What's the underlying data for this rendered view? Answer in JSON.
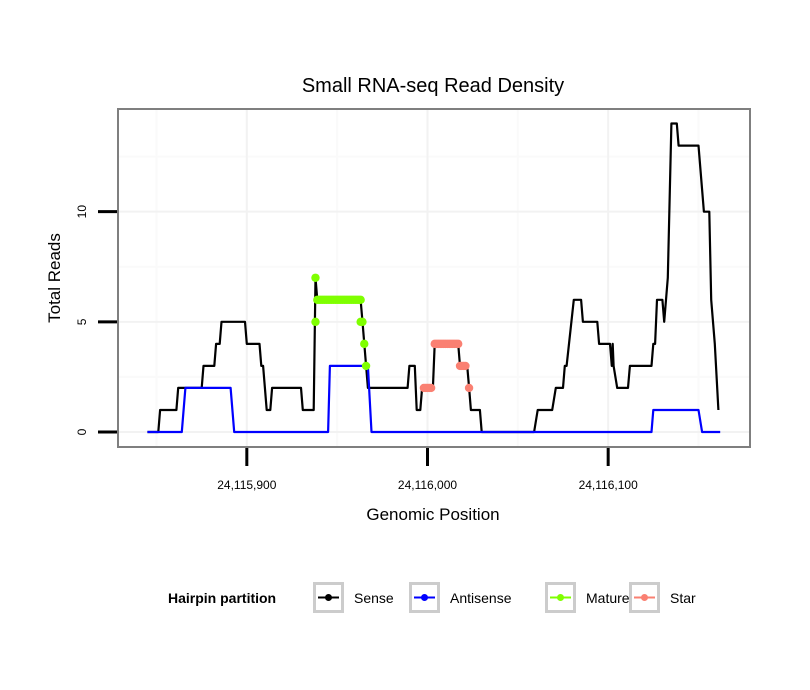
{
  "chart_data": {
    "type": "line",
    "title": "Small RNA-seq Read Density",
    "xlabel": "Genomic Position",
    "ylabel": "Total Reads",
    "xlim": [
      24115828.7,
      24116178.5
    ],
    "ylim": [
      -0.68,
      14.66
    ],
    "x_ticks": [
      24115900,
      24116000,
      24116100
    ],
    "x_tick_labels": [
      "24,115,900",
      "24,116,000",
      "24,116,100"
    ],
    "y_ticks": [
      0,
      5,
      10
    ],
    "y_tick_labels": [
      "0",
      "5",
      "10"
    ],
    "x_minor_grid": [
      24115850,
      24115950,
      24116050,
      24116150
    ],
    "y_minor_grid": [
      2.5,
      7.5,
      12.5
    ],
    "grid": true,
    "legend": {
      "title": "Hairpin partition",
      "position": "bottom",
      "entries": [
        {
          "name": "Sense",
          "color": "#000000"
        },
        {
          "name": "Antisense",
          "color": "#0000ff"
        },
        {
          "name": "Mature",
          "color": "#7fff00"
        },
        {
          "name": "Star",
          "color": "#fa8072"
        }
      ]
    },
    "series": [
      {
        "name": "Sense",
        "color": "#000000",
        "style": "line",
        "points": [
          [
            24115845,
            0
          ],
          [
            24115851,
            0
          ],
          [
            24115852,
            1
          ],
          [
            24115861,
            1
          ],
          [
            24115862,
            2
          ],
          [
            24115875,
            2
          ],
          [
            24115876,
            3
          ],
          [
            24115882,
            3
          ],
          [
            24115883,
            4
          ],
          [
            24115885,
            4
          ],
          [
            24115886,
            5
          ],
          [
            24115899,
            5
          ],
          [
            24115900,
            4
          ],
          [
            24115907,
            4
          ],
          [
            24115908,
            3
          ],
          [
            24115909,
            3
          ],
          [
            24115910,
            2
          ],
          [
            24115911,
            1
          ],
          [
            24115913,
            1
          ],
          [
            24115914,
            2
          ],
          [
            24115930,
            2
          ],
          [
            24115931,
            1
          ],
          [
            24115937,
            1
          ],
          [
            24115938,
            7
          ],
          [
            24115939,
            6
          ],
          [
            24115963,
            6
          ],
          [
            24115964,
            5
          ],
          [
            24115965,
            4
          ],
          [
            24115966,
            3
          ],
          [
            24115967,
            2
          ],
          [
            24115989,
            2
          ],
          [
            24115990,
            3
          ],
          [
            24115993,
            3
          ],
          [
            24115994,
            1
          ],
          [
            24115996,
            1
          ],
          [
            24115997,
            2
          ],
          [
            24116003,
            2
          ],
          [
            24116004,
            4
          ],
          [
            24116017,
            4
          ],
          [
            24116018,
            3
          ],
          [
            24116022,
            3
          ],
          [
            24116023,
            2
          ],
          [
            24116024,
            1
          ],
          [
            24116029,
            1
          ],
          [
            24116030,
            0
          ],
          [
            24116059,
            0
          ],
          [
            24116061,
            1
          ],
          [
            24116069,
            1
          ],
          [
            24116071,
            2
          ],
          [
            24116075,
            2
          ],
          [
            24116076,
            3
          ],
          [
            24116077,
            3
          ],
          [
            24116081,
            6
          ],
          [
            24116085,
            6
          ],
          [
            24116086,
            5
          ],
          [
            24116094,
            5
          ],
          [
            24116095,
            4
          ],
          [
            24116101,
            4
          ],
          [
            24116102,
            3
          ],
          [
            24116102.5,
            4
          ],
          [
            24116103,
            3
          ],
          [
            24116105,
            2
          ],
          [
            24116111,
            2
          ],
          [
            24116112,
            3
          ],
          [
            24116124,
            3
          ],
          [
            24116125,
            4
          ],
          [
            24116126,
            4
          ],
          [
            24116127,
            6
          ],
          [
            24116130,
            6
          ],
          [
            24116131,
            5
          ],
          [
            24116133,
            7
          ],
          [
            24116135,
            14
          ],
          [
            24116138,
            14
          ],
          [
            24116139,
            13
          ],
          [
            24116150,
            13
          ],
          [
            24116152,
            11
          ],
          [
            24116153,
            10
          ],
          [
            24116156,
            10
          ],
          [
            24116157,
            6
          ],
          [
            24116158,
            5
          ],
          [
            24116159,
            4
          ],
          [
            24116161,
            1
          ]
        ]
      },
      {
        "name": "Antisense",
        "color": "#0000ff",
        "style": "line",
        "points": [
          [
            24115845,
            0
          ],
          [
            24115864,
            0
          ],
          [
            24115866,
            2
          ],
          [
            24115891,
            2
          ],
          [
            24115893,
            0
          ],
          [
            24115945,
            0
          ],
          [
            24115946,
            3
          ],
          [
            24115967,
            3
          ],
          [
            24115969,
            0
          ],
          [
            24116124,
            0
          ],
          [
            24116125,
            1
          ],
          [
            24116150,
            1
          ],
          [
            24116152,
            0
          ],
          [
            24116162,
            0
          ]
        ]
      },
      {
        "name": "Mature",
        "color": "#7fff00",
        "style": "points",
        "points": [
          [
            24115938,
            7
          ],
          [
            24115938,
            5
          ],
          [
            24115939,
            6
          ],
          [
            24115940,
            6
          ],
          [
            24115941,
            6
          ],
          [
            24115942,
            6
          ],
          [
            24115943,
            6
          ],
          [
            24115944,
            6
          ],
          [
            24115945,
            6
          ],
          [
            24115946,
            6
          ],
          [
            24115947,
            6
          ],
          [
            24115948,
            6
          ],
          [
            24115949,
            6
          ],
          [
            24115950,
            6
          ],
          [
            24115951,
            6
          ],
          [
            24115952,
            6
          ],
          [
            24115953,
            6
          ],
          [
            24115954,
            6
          ],
          [
            24115955,
            6
          ],
          [
            24115956,
            6
          ],
          [
            24115957,
            6
          ],
          [
            24115958,
            6
          ],
          [
            24115959,
            6
          ],
          [
            24115960,
            6
          ],
          [
            24115961,
            6
          ],
          [
            24115962,
            6
          ],
          [
            24115963,
            6
          ],
          [
            24115963,
            5
          ],
          [
            24115964,
            5
          ],
          [
            24115965,
            4
          ],
          [
            24115966,
            3
          ]
        ]
      },
      {
        "name": "Star",
        "color": "#fa8072",
        "style": "points",
        "points": [
          [
            24115998,
            2
          ],
          [
            24115999,
            2
          ],
          [
            24116000,
            2
          ],
          [
            24116001,
            2
          ],
          [
            24116002,
            2
          ],
          [
            24116004,
            4
          ],
          [
            24116005,
            4
          ],
          [
            24116006,
            4
          ],
          [
            24116007,
            4
          ],
          [
            24116008,
            4
          ],
          [
            24116009,
            4
          ],
          [
            24116010,
            4
          ],
          [
            24116011,
            4
          ],
          [
            24116012,
            4
          ],
          [
            24116013,
            4
          ],
          [
            24116014,
            4
          ],
          [
            24116015,
            4
          ],
          [
            24116016,
            4
          ],
          [
            24116017,
            4
          ],
          [
            24116018,
            3
          ],
          [
            24116019,
            3
          ],
          [
            24116020,
            3
          ],
          [
            24116021,
            3
          ],
          [
            24116023,
            2
          ]
        ]
      }
    ]
  }
}
